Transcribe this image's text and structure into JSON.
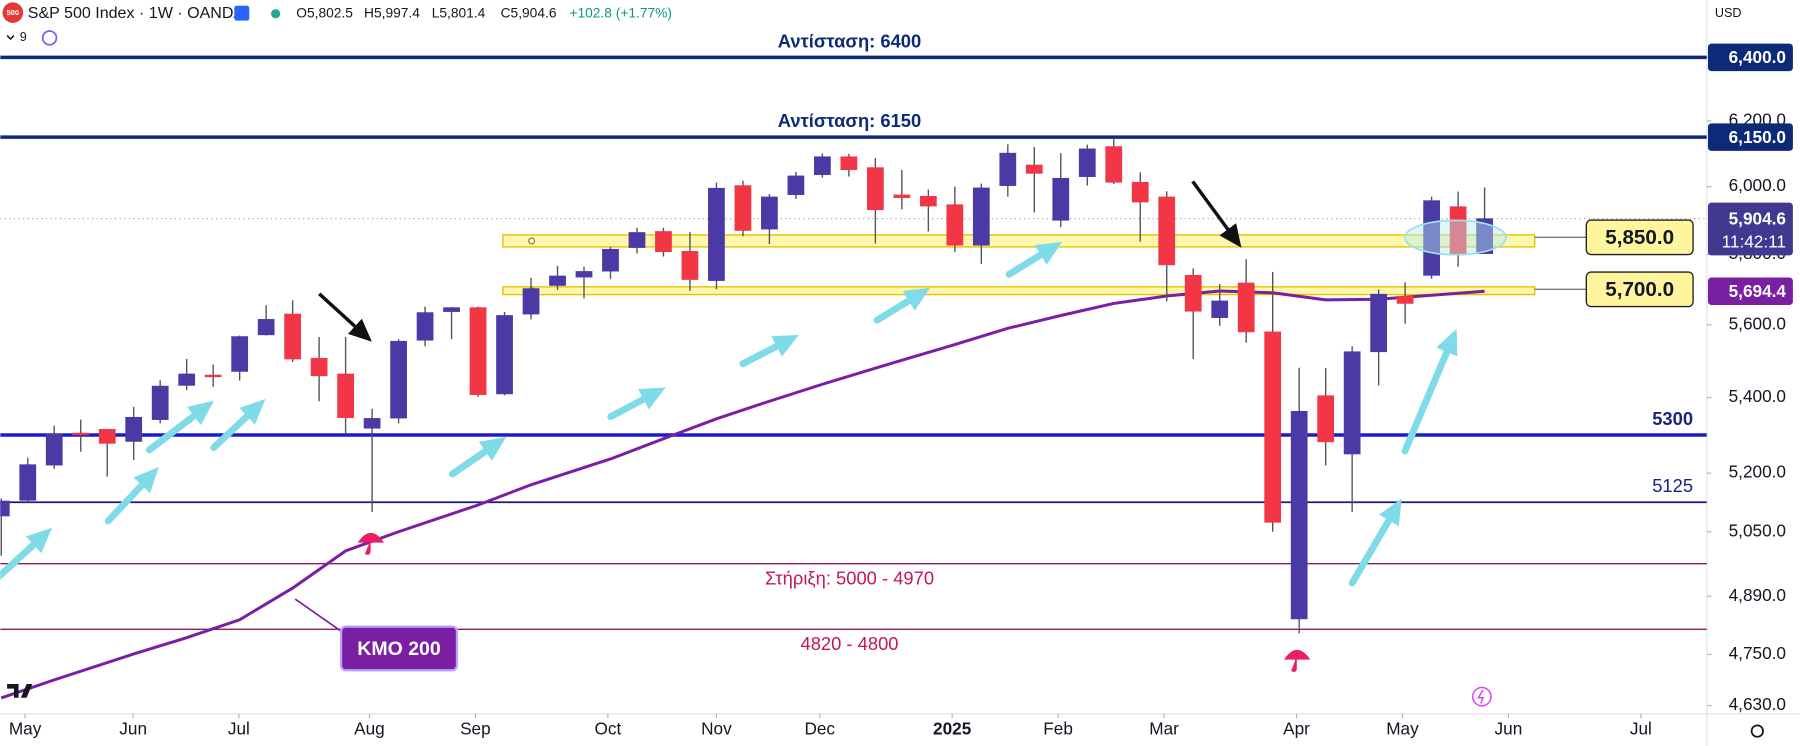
{
  "header": {
    "logo": "500",
    "title": "S&P 500 Index · 1W · OANDA",
    "open": "O5,802.5",
    "high": "H5,997.4",
    "low": "L5,801.4",
    "close": "C5,904.6",
    "change": "+102.8 (+1.77%)",
    "indicator_count": "9",
    "currency": "USD"
  },
  "chart_data": {
    "type": "candlestick",
    "log_scale": true,
    "grid": false,
    "up_color": "#4b3aa6",
    "down_color": "#f23645",
    "open": [
      5090,
      5130,
      5221,
      5305,
      5315,
      5283,
      5341,
      5433,
      5461,
      5471,
      5572,
      5630,
      5507,
      5464,
      5318,
      5345,
      5557,
      5637,
      5648,
      5410,
      5630,
      5711,
      5735,
      5752,
      5820,
      5867,
      5809,
      5725,
      6003,
      5874,
      5976,
      6036,
      6090,
      6057,
      5975,
      5971,
      5946,
      5827,
      6003,
      6065,
      5900,
      6030,
      6121,
      6013,
      5969,
      5740,
      5620,
      5718,
      5580,
      4835,
      5405,
      5250,
      5525,
      5680,
      5740,
      5940,
      5802.5
    ],
    "high": [
      5135,
      5240,
      5325,
      5341,
      5315,
      5375,
      5447,
      5505,
      5490,
      5570,
      5655,
      5669,
      5566,
      5566,
      5370,
      5560,
      5651,
      5650,
      5651,
      5636,
      5733,
      5767,
      5765,
      5822,
      5878,
      5878,
      5865,
      6012,
      6018,
      5978,
      6044,
      6100,
      6099,
      6086,
      6050,
      5991,
      6000,
      6009,
      6128,
      6120,
      6101,
      6127,
      6147,
      6043,
      5986,
      5760,
      5715,
      5786,
      5750,
      5481,
      5480,
      5540,
      5700,
      5720,
      5970,
      5985,
      5997.4
    ],
    "low": [
      4990,
      5125,
      5211,
      5256,
      5191,
      5234,
      5331,
      5420,
      5429,
      5446,
      5570,
      5497,
      5390,
      5302,
      5100,
      5331,
      5540,
      5560,
      5402,
      5406,
      5615,
      5698,
      5674,
      5730,
      5803,
      5794,
      5696,
      5700,
      5853,
      5830,
      5963,
      6027,
      6030,
      5832,
      5932,
      5867,
      5807,
      5773,
      5970,
      5923,
      5880,
      6003,
      6008,
      5837,
      5666,
      5505,
      5597,
      5550,
      5050,
      4800,
      5220,
      5100,
      5433,
      5603,
      5730,
      5765,
      5801.4
    ],
    "close": [
      5128,
      5222,
      5303,
      5304,
      5278,
      5347,
      5431,
      5464,
      5460,
      5567,
      5615,
      5505,
      5459,
      5346,
      5344,
      5554,
      5634,
      5648,
      5408,
      5626,
      5702,
      5738,
      5751,
      5815,
      5864,
      5808,
      5728,
      5995,
      5870,
      5969,
      6032,
      6090,
      6051,
      5931,
      5967,
      5942,
      5827,
      5996,
      6101,
      6040,
      6025,
      6114,
      6013,
      5954,
      5770,
      5638,
      5667,
      5580,
      5074,
      5363,
      5282,
      5525,
      5686,
      5660,
      5958,
      5802,
      5904.6
    ],
    "xlim": [
      -0.04,
      64.39
    ],
    "xticks": [
      {
        "value": 0.9,
        "label": "May"
      },
      {
        "value": 4.98,
        "label": "Jun"
      },
      {
        "value": 8.97,
        "label": "Jul"
      },
      {
        "value": 13.9,
        "label": "Aug"
      },
      {
        "value": 17.9,
        "label": "Sep"
      },
      {
        "value": 22.9,
        "label": "Oct"
      },
      {
        "value": 27,
        "label": "Nov"
      },
      {
        "value": 30.9,
        "label": "Dec"
      },
      {
        "value": 35.9,
        "label": "2025"
      },
      {
        "value": 39.9,
        "label": "Feb"
      },
      {
        "value": 43.9,
        "label": "Mar"
      },
      {
        "value": 48.9,
        "label": "Apr"
      },
      {
        "value": 52.9,
        "label": "May"
      },
      {
        "value": 56.9,
        "label": "Jun"
      },
      {
        "value": 61.9,
        "label": "Jul"
      }
    ],
    "ylim": [
      4611,
      6586
    ],
    "yticks": [
      {
        "value": 6400,
        "label": "6,400.0"
      },
      {
        "value": 6200,
        "label": "6,200.0"
      },
      {
        "value": 6000,
        "label": "6,000.0"
      },
      {
        "value": 5800,
        "label": "5,800.0"
      },
      {
        "value": 5600,
        "label": "5,600.0"
      },
      {
        "value": 5400,
        "label": "5,400.0"
      },
      {
        "value": 5200,
        "label": "5,200.0"
      },
      {
        "value": 5050,
        "label": "5,050.0"
      },
      {
        "value": 4890,
        "label": "4,890.0"
      },
      {
        "value": 4750,
        "label": "4,750.0"
      },
      {
        "value": 4630,
        "label": "4,630.0"
      }
    ],
    "ma": {
      "name": "KMO 200",
      "color": "#7b1fa2",
      "x": [
        0,
        2,
        5,
        7,
        9,
        11,
        13,
        15,
        18,
        20,
        23,
        25,
        27,
        29,
        31,
        33,
        36,
        38,
        40,
        42,
        44,
        46,
        48,
        50,
        52,
        56
      ],
      "values": [
        4648,
        4690,
        4751,
        4790,
        4833,
        4910,
        5002,
        5050,
        5118,
        5170,
        5237,
        5290,
        5343,
        5390,
        5436,
        5480,
        5545,
        5590,
        5626,
        5660,
        5681,
        5695,
        5690,
        5670,
        5672,
        5694.4
      ]
    },
    "levels": [
      {
        "value": 6400,
        "label": "Αντίσταση: 6400",
        "color": "#0d2a78",
        "label_color": "#0d2a78",
        "width": 3,
        "align": "center",
        "label_position": "above"
      },
      {
        "value": 6150,
        "label": "Αντίσταση: 6150",
        "color": "#0d2a78",
        "label_color": "#0d2a78",
        "width": 3,
        "align": "center",
        "label_position": "above"
      },
      {
        "value": 5300,
        "label": "5300",
        "color": "#1c1ccf",
        "label_color": "#1a237e",
        "width": 3,
        "align": "right",
        "label_position": "above"
      },
      {
        "value": 5125,
        "label": "5125",
        "color": "#1a1a7e",
        "label_color": "#1a237e",
        "width": 1.5,
        "align": "right",
        "label_position": "above"
      },
      {
        "value": 4970,
        "label": "Στήριξη: 5000 - 4970",
        "color": "#8e1a5e",
        "label_color": "#c2185b",
        "width": 1.2,
        "align": "center",
        "label_position": "below"
      },
      {
        "value": 4810,
        "label": "4820 - 4800",
        "color": "#8e1a5e",
        "label_color": "#c2185b",
        "width": 1.2,
        "align": "center",
        "label_position": "below"
      }
    ],
    "zones": [
      {
        "low": 5822,
        "high": 5857,
        "value": 5850,
        "label": "5,850.0"
      },
      {
        "low": 5685,
        "high": 5707,
        "value": 5700,
        "label": "5,700.0"
      }
    ],
    "price_labels": [
      {
        "value": 6400,
        "label": "6,400.0",
        "color": "#0d2a78"
      },
      {
        "value": 6150,
        "label": "6,150.0",
        "color": "#0d2a78"
      },
      {
        "value": 5904.6,
        "label": "5,904.6",
        "sublabel": "11:42:11",
        "color": "#41398f"
      },
      {
        "value": 5694.4,
        "label": "5,694.4",
        "color": "#7b1fa2"
      }
    ]
  }
}
